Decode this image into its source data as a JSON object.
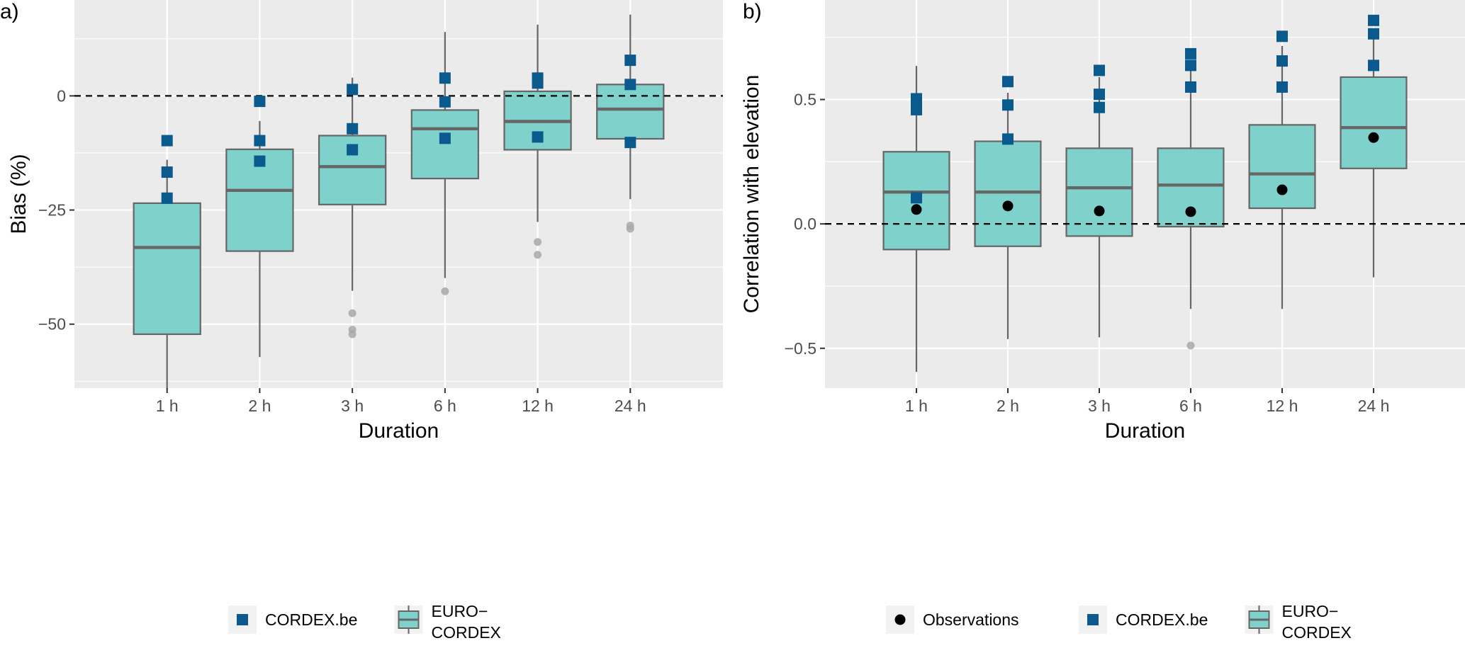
{
  "colors": {
    "panel_bg": "#EBEBEB",
    "grid": "#FFFFFF",
    "box_fill": "#7FD1CB",
    "box_stroke": "#666666",
    "cordex_be": "#0B5A8E",
    "observations": "#000000",
    "outlier": "#A8A8A8"
  },
  "chart_data": [
    {
      "type": "box",
      "panel_label": "a)",
      "xlabel": "Duration",
      "ylabel": "Bias (%)",
      "categories": [
        "1 h",
        "2 h",
        "3 h",
        "6 h",
        "12 h",
        "24 h"
      ],
      "ylim": [
        -64,
        21
      ],
      "yticks": [
        -50,
        -25,
        0
      ],
      "ytick_labels": [
        "−50",
        "−25",
        "0"
      ],
      "reference_line": 0,
      "grid": true,
      "boxes": [
        {
          "lower_whisker": -64.3,
          "q1": -52.2,
          "median": -33.2,
          "q3": -23.5,
          "upper_whisker": -14.0,
          "outliers": []
        },
        {
          "lower_whisker": -57.2,
          "q1": -34.0,
          "median": -20.7,
          "q3": -11.7,
          "upper_whisker": -5.5,
          "outliers": []
        },
        {
          "lower_whisker": -42.7,
          "q1": -23.8,
          "median": -15.5,
          "q3": -8.7,
          "upper_whisker": 4.0,
          "outliers": [
            -47.6,
            -51.2,
            -52.2
          ]
        },
        {
          "lower_whisker": -39.9,
          "q1": -18.1,
          "median": -7.2,
          "q3": -3.1,
          "upper_whisker": 14.0,
          "outliers": [
            -42.8
          ]
        },
        {
          "lower_whisker": -27.6,
          "q1": -11.8,
          "median": -5.6,
          "q3": 1.0,
          "upper_whisker": 15.6,
          "outliers": [
            -32.0,
            -34.8
          ]
        },
        {
          "lower_whisker": -22.6,
          "q1": -9.4,
          "median": -2.9,
          "q3": 2.5,
          "upper_whisker": 17.8,
          "outliers": [
            -28.4,
            -29.1
          ]
        }
      ],
      "series": [
        {
          "name": "CORDEX.be",
          "marker": "square",
          "points": [
            [
              -9.8,
              -16.7,
              -22.4
            ],
            [
              -1.2,
              -9.8,
              -14.3
            ],
            [
              1.4,
              -7.2,
              -11.8
            ],
            [
              3.9,
              -1.3,
              -9.3
            ],
            [
              3.9,
              2.8,
              -9.0
            ],
            [
              7.8,
              2.5,
              -10.2
            ]
          ]
        }
      ],
      "legend": {
        "position": "bottom",
        "entries": [
          {
            "key": "cordex",
            "label": "CORDEX.be"
          },
          {
            "key": "box",
            "label": "EURO−CORDEX",
            "lines": [
              "EURO−",
              "CORDEX"
            ]
          }
        ]
      }
    },
    {
      "type": "box",
      "panel_label": "b)",
      "xlabel": "Duration",
      "ylabel": "Correlation with elevation",
      "categories": [
        "1 h",
        "2 h",
        "3 h",
        "6 h",
        "12 h",
        "24 h"
      ],
      "ylim": [
        -0.66,
        0.9
      ],
      "yticks": [
        -0.5,
        0.0,
        0.5
      ],
      "ytick_labels": [
        "−0.5",
        "0.0",
        "0.5"
      ],
      "reference_line": 0,
      "grid": true,
      "boxes": [
        {
          "lower_whisker": -0.595,
          "q1": -0.103,
          "median": 0.128,
          "q3": 0.29,
          "upper_whisker": 0.635,
          "outliers": []
        },
        {
          "lower_whisker": -0.463,
          "q1": -0.09,
          "median": 0.128,
          "q3": 0.332,
          "upper_whisker": 0.527,
          "outliers": []
        },
        {
          "lower_whisker": -0.456,
          "q1": -0.049,
          "median": 0.145,
          "q3": 0.304,
          "upper_whisker": 0.59,
          "outliers": []
        },
        {
          "lower_whisker": -0.342,
          "q1": -0.011,
          "median": 0.156,
          "q3": 0.304,
          "upper_whisker": 0.625,
          "outliers": [
            -0.489
          ]
        },
        {
          "lower_whisker": -0.342,
          "q1": 0.063,
          "median": 0.201,
          "q3": 0.398,
          "upper_whisker": 0.715,
          "outliers": []
        },
        {
          "lower_whisker": -0.215,
          "q1": 0.223,
          "median": 0.387,
          "q3": 0.59,
          "upper_whisker": 0.77,
          "outliers": []
        }
      ],
      "series": [
        {
          "name": "CORDEX.be",
          "marker": "square",
          "points": [
            [
              0.503,
              0.459,
              0.105
            ],
            [
              0.572,
              0.478,
              0.341
            ],
            [
              0.617,
              0.521,
              0.468
            ],
            [
              0.684,
              0.637,
              0.55
            ],
            [
              0.754,
              0.655,
              0.55
            ],
            [
              0.818,
              0.764,
              0.637
            ]
          ]
        },
        {
          "name": "Observations",
          "marker": "circle",
          "points": [
            [
              0.058
            ],
            [
              0.072
            ],
            [
              0.052
            ],
            [
              0.049
            ],
            [
              0.137
            ],
            [
              0.347
            ]
          ]
        }
      ],
      "legend": {
        "position": "bottom",
        "entries": [
          {
            "key": "obs",
            "label": "Observations"
          },
          {
            "key": "cordex",
            "label": "CORDEX.be"
          },
          {
            "key": "box",
            "label": "EURO−CORDEX",
            "lines": [
              "EURO−",
              "CORDEX"
            ]
          }
        ]
      }
    }
  ]
}
